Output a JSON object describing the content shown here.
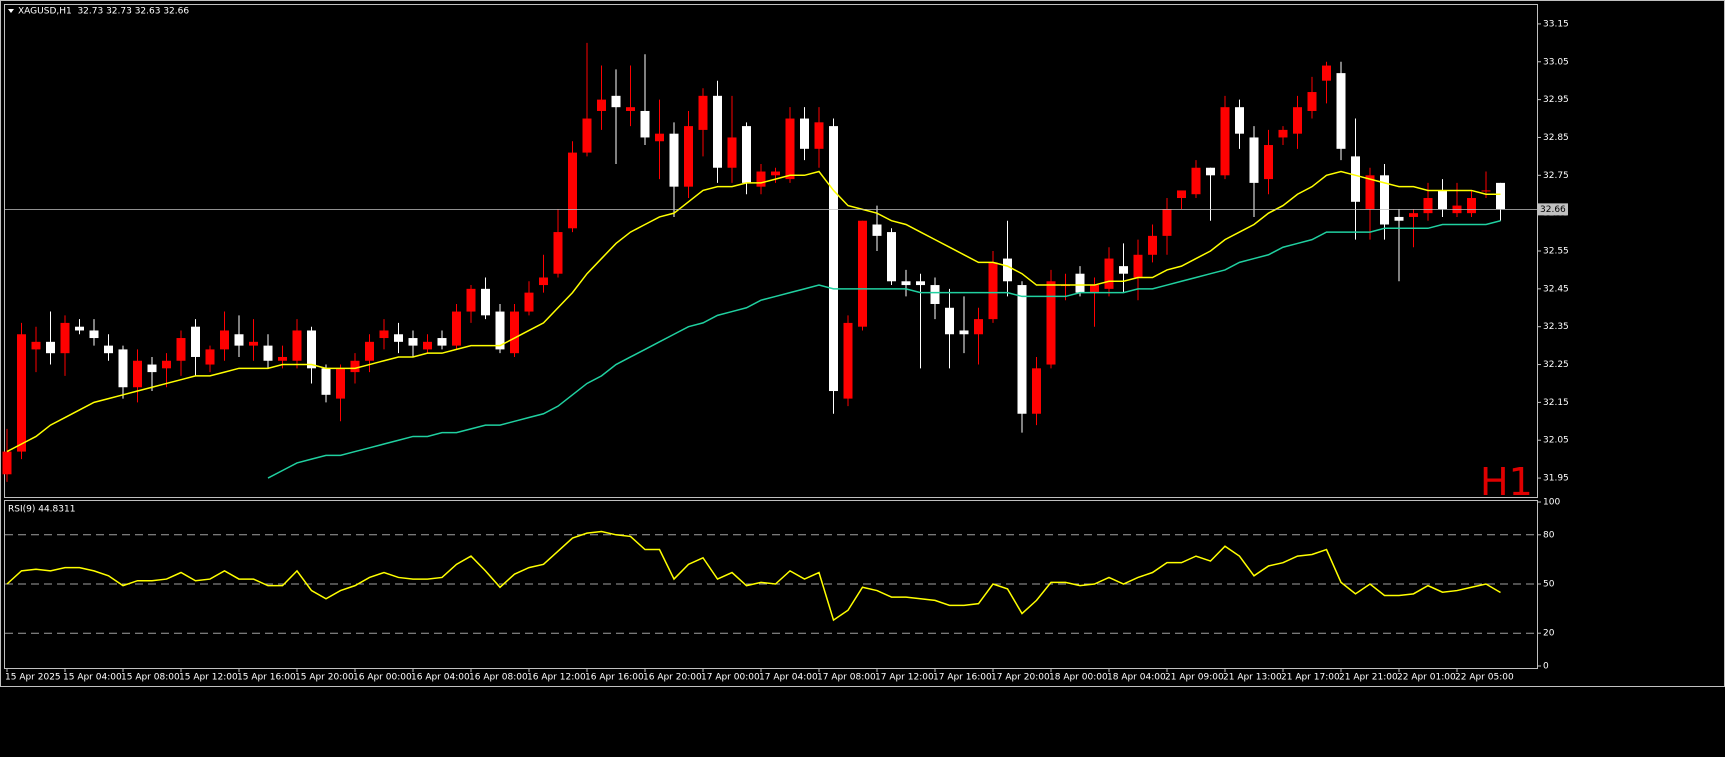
{
  "chart_data": [
    {
      "type": "candlestick",
      "title": "XAGUSD,H1  32.73 32.73 32.63 32.66",
      "annotation": "H1",
      "up_color": "#ff0000",
      "down_color": "#ffffff",
      "annotation_color": "#e00000",
      "last_price": 32.66,
      "last_price_color": "#c0c0c0",
      "ylim": [
        31.9,
        33.2
      ],
      "yticks": [
        33.15,
        33.05,
        32.95,
        32.85,
        32.75,
        32.65,
        32.55,
        32.45,
        32.35,
        32.25,
        32.15,
        32.05,
        31.95
      ],
      "categories": [
        "15 Apr 2025",
        null,
        null,
        null,
        "15 Apr 04:00",
        null,
        null,
        null,
        "15 Apr 08:00",
        null,
        null,
        null,
        "15 Apr 12:00",
        null,
        null,
        null,
        "15 Apr 16:00",
        null,
        null,
        null,
        "15 Apr 20:00",
        null,
        null,
        null,
        "16 Apr 00:00",
        null,
        null,
        null,
        "16 Apr 04:00",
        null,
        null,
        null,
        "16 Apr 08:00",
        null,
        null,
        null,
        "16 Apr 12:00",
        null,
        null,
        null,
        "16 Apr 16:00",
        null,
        null,
        null,
        "16 Apr 20:00",
        null,
        null,
        null,
        "17 Apr 00:00",
        null,
        null,
        null,
        "17 Apr 04:00",
        null,
        null,
        null,
        "17 Apr 08:00",
        null,
        null,
        null,
        "17 Apr 12:00",
        null,
        null,
        null,
        "17 Apr 16:00",
        null,
        null,
        null,
        "17 Apr 20:00",
        null,
        null,
        null,
        "18 Apr 00:00",
        null,
        null,
        null,
        "18 Apr 04:00",
        null,
        null,
        null,
        "21 Apr 09:00",
        null,
        null,
        null,
        "21 Apr 13:00",
        null,
        null,
        null,
        "21 Apr 17:00",
        null,
        null,
        null,
        "21 Apr 21:00",
        null,
        null,
        null,
        "22 Apr 01:00",
        null,
        null,
        null,
        "22 Apr 05:00",
        null,
        null,
        null
      ],
      "open": [
        31.96,
        32.02,
        32.29,
        32.31,
        32.28,
        32.35,
        32.34,
        32.3,
        32.29,
        32.19,
        32.25,
        32.24,
        32.26,
        32.35,
        32.25,
        32.29,
        32.33,
        32.3,
        32.3,
        32.26,
        32.26,
        32.34,
        32.24,
        32.16,
        32.23,
        32.26,
        32.32,
        32.33,
        32.32,
        32.29,
        32.32,
        32.3,
        32.39,
        32.45,
        32.39,
        32.28,
        32.39,
        32.46,
        32.49,
        32.61,
        32.81,
        32.92,
        32.96,
        32.92,
        32.92,
        32.84,
        32.86,
        32.72,
        32.87,
        32.96,
        32.77,
        32.88,
        32.72,
        32.75,
        32.74,
        32.9,
        32.82,
        32.88,
        32.16,
        32.35,
        32.62,
        32.6,
        32.47,
        32.47,
        32.46,
        32.4,
        32.34,
        32.33,
        32.37,
        32.53,
        32.46,
        32.12,
        32.25,
        32.46,
        32.49,
        32.44,
        32.45,
        32.51,
        32.48,
        32.54,
        32.59,
        32.69,
        32.7,
        32.77,
        32.75,
        32.93,
        32.85,
        32.74,
        32.85,
        32.86,
        32.92,
        33.0,
        33.02,
        32.8,
        32.66,
        32.75,
        32.64,
        32.64,
        32.65,
        32.71,
        32.65,
        32.65,
        32.71,
        32.73
      ],
      "high": [
        32.08,
        32.36,
        32.35,
        32.39,
        32.38,
        32.37,
        32.37,
        32.33,
        32.3,
        32.29,
        32.27,
        32.28,
        32.34,
        32.37,
        32.3,
        32.39,
        32.38,
        32.37,
        32.33,
        32.3,
        32.37,
        32.35,
        32.25,
        32.25,
        32.28,
        32.33,
        32.37,
        32.36,
        32.34,
        32.33,
        32.34,
        32.41,
        32.46,
        32.48,
        32.41,
        32.41,
        32.47,
        32.54,
        32.66,
        32.84,
        33.1,
        33.04,
        33.03,
        33.04,
        33.07,
        32.95,
        32.89,
        32.92,
        32.98,
        33.0,
        32.96,
        32.89,
        32.78,
        32.77,
        32.93,
        32.93,
        32.93,
        32.9,
        32.38,
        32.63,
        32.67,
        32.61,
        32.5,
        32.49,
        32.48,
        32.45,
        32.43,
        32.4,
        32.55,
        32.63,
        32.47,
        32.27,
        32.5,
        32.49,
        32.51,
        32.48,
        32.56,
        32.57,
        32.58,
        32.62,
        32.69,
        32.71,
        32.79,
        32.77,
        32.96,
        32.95,
        32.88,
        32.87,
        32.88,
        32.96,
        33.01,
        33.05,
        33.05,
        32.9,
        32.77,
        32.78,
        32.66,
        32.66,
        32.73,
        32.74,
        32.73,
        32.71,
        32.76,
        32.73
      ],
      "low": [
        31.94,
        32.0,
        32.23,
        32.25,
        32.22,
        32.33,
        32.3,
        32.26,
        32.16,
        32.15,
        32.18,
        32.19,
        32.22,
        32.22,
        32.23,
        32.26,
        32.27,
        32.26,
        32.24,
        32.24,
        32.24,
        32.2,
        32.15,
        32.1,
        32.2,
        32.23,
        32.29,
        32.28,
        32.27,
        32.28,
        32.29,
        32.29,
        32.36,
        32.37,
        32.28,
        32.27,
        32.38,
        32.44,
        32.48,
        32.6,
        32.8,
        32.87,
        32.78,
        32.88,
        32.83,
        32.74,
        32.64,
        32.69,
        32.8,
        32.73,
        32.73,
        32.7,
        32.7,
        32.73,
        32.73,
        32.79,
        32.77,
        32.12,
        32.14,
        32.34,
        32.55,
        32.46,
        32.43,
        32.24,
        32.37,
        32.24,
        32.28,
        32.25,
        32.36,
        32.43,
        32.07,
        32.09,
        32.24,
        32.42,
        32.43,
        32.35,
        32.43,
        32.44,
        32.42,
        32.52,
        32.54,
        32.66,
        32.69,
        32.63,
        32.74,
        32.82,
        32.64,
        32.7,
        32.83,
        32.82,
        32.9,
        32.94,
        32.79,
        32.58,
        32.58,
        32.58,
        32.47,
        32.56,
        32.63,
        32.64,
        32.64,
        32.64,
        32.69,
        32.63
      ],
      "close": [
        32.02,
        32.33,
        32.31,
        32.28,
        32.36,
        32.34,
        32.32,
        32.28,
        32.19,
        32.26,
        32.23,
        32.26,
        32.32,
        32.27,
        32.29,
        32.34,
        32.3,
        32.31,
        32.26,
        32.27,
        32.34,
        32.24,
        32.17,
        32.24,
        32.26,
        32.31,
        32.34,
        32.31,
        32.3,
        32.31,
        32.3,
        32.39,
        32.45,
        32.38,
        32.29,
        32.39,
        32.44,
        32.48,
        32.6,
        32.81,
        32.9,
        32.95,
        32.93,
        32.93,
        32.85,
        32.86,
        32.72,
        32.88,
        32.96,
        32.77,
        32.85,
        32.73,
        32.76,
        32.76,
        32.9,
        32.82,
        32.89,
        32.18,
        32.36,
        32.63,
        32.59,
        32.47,
        32.46,
        32.46,
        32.41,
        32.33,
        32.33,
        32.37,
        32.52,
        32.47,
        32.12,
        32.24,
        32.47,
        32.46,
        32.44,
        32.46,
        32.53,
        32.49,
        32.54,
        32.59,
        32.66,
        32.71,
        32.77,
        32.75,
        32.93,
        32.86,
        32.73,
        32.83,
        32.87,
        32.93,
        32.97,
        33.04,
        32.82,
        32.68,
        32.75,
        32.62,
        32.63,
        32.65,
        32.69,
        32.66,
        32.67,
        32.69,
        32.71,
        32.66
      ],
      "series": [
        {
          "color": "#ffff00",
          "values": [
            32.02,
            32.04,
            32.06,
            32.09,
            32.11,
            32.13,
            32.15,
            32.16,
            32.17,
            32.18,
            32.19,
            32.2,
            32.21,
            32.22,
            32.22,
            32.23,
            32.24,
            32.24,
            32.24,
            32.25,
            32.25,
            32.25,
            32.24,
            32.24,
            32.24,
            32.25,
            32.26,
            32.27,
            32.27,
            32.28,
            32.28,
            32.29,
            32.3,
            32.3,
            32.3,
            32.32,
            32.34,
            32.36,
            32.4,
            32.44,
            32.49,
            32.53,
            32.57,
            32.6,
            32.62,
            32.64,
            32.65,
            32.68,
            32.71,
            32.72,
            32.72,
            32.73,
            32.73,
            32.74,
            32.75,
            32.75,
            32.76,
            32.71,
            32.67,
            32.66,
            32.65,
            32.63,
            32.62,
            32.6,
            32.58,
            32.56,
            32.54,
            32.52,
            32.52,
            32.51,
            32.49,
            32.46,
            32.46,
            32.46,
            32.46,
            32.46,
            32.47,
            32.47,
            32.48,
            32.48,
            32.5,
            32.51,
            32.53,
            32.55,
            32.58,
            32.6,
            32.62,
            32.65,
            32.67,
            32.7,
            32.72,
            32.75,
            32.76,
            32.75,
            32.74,
            32.73,
            32.72,
            32.72,
            32.71,
            32.71,
            32.71,
            32.71,
            32.7,
            32.7
          ]
        },
        {
          "color": "#20d0a0",
          "values": [
            null,
            null,
            null,
            null,
            null,
            null,
            null,
            null,
            null,
            null,
            null,
            null,
            null,
            null,
            null,
            null,
            null,
            null,
            31.95,
            31.97,
            31.99,
            32.0,
            32.01,
            32.01,
            32.02,
            32.03,
            32.04,
            32.05,
            32.06,
            32.06,
            32.07,
            32.07,
            32.08,
            32.09,
            32.09,
            32.1,
            32.11,
            32.12,
            32.14,
            32.17,
            32.2,
            32.22,
            32.25,
            32.27,
            32.29,
            32.31,
            32.33,
            32.35,
            32.36,
            32.38,
            32.39,
            32.4,
            32.42,
            32.43,
            32.44,
            32.45,
            32.46,
            32.45,
            32.45,
            32.45,
            32.45,
            32.45,
            32.45,
            32.44,
            32.44,
            32.44,
            32.44,
            32.44,
            32.44,
            32.44,
            32.43,
            32.43,
            32.43,
            32.43,
            32.44,
            32.44,
            32.44,
            32.44,
            32.45,
            32.45,
            32.46,
            32.47,
            32.48,
            32.49,
            32.5,
            32.52,
            32.53,
            32.54,
            32.56,
            32.57,
            32.58,
            32.6,
            32.6,
            32.6,
            32.6,
            32.61,
            32.61,
            32.61,
            32.61,
            32.62,
            32.62,
            32.62,
            32.62,
            32.63
          ]
        }
      ]
    },
    {
      "type": "line",
      "title": "RSI(9) 44.8311",
      "ylim": [
        0,
        100
      ],
      "yticks": [
        100,
        80,
        50,
        20,
        0
      ],
      "levels": [
        80,
        50,
        20
      ],
      "level_color": "#a0a0a0",
      "series": [
        {
          "color": "#ffff00",
          "values": [
            50,
            58,
            59,
            58,
            60,
            60,
            58,
            55,
            49,
            52,
            52,
            53,
            57,
            52,
            53,
            58,
            53,
            53,
            49,
            49,
            58,
            46,
            41,
            46,
            49,
            54,
            57,
            54,
            53,
            53,
            54,
            62,
            67,
            58,
            48,
            56,
            60,
            62,
            70,
            78,
            81,
            82,
            80,
            79,
            71,
            71,
            53,
            62,
            66,
            53,
            57,
            49,
            51,
            50,
            58,
            53,
            57,
            28,
            34,
            48,
            46,
            42,
            42,
            41,
            40,
            37,
            37,
            38,
            50,
            47,
            32,
            40,
            51,
            51,
            49,
            50,
            54,
            50,
            54,
            57,
            63,
            63,
            67,
            64,
            73,
            67,
            55,
            61,
            63,
            67,
            68,
            71,
            51,
            44,
            50,
            43,
            43,
            44,
            49,
            45,
            46,
            48,
            50,
            44.8311
          ]
        }
      ]
    }
  ]
}
